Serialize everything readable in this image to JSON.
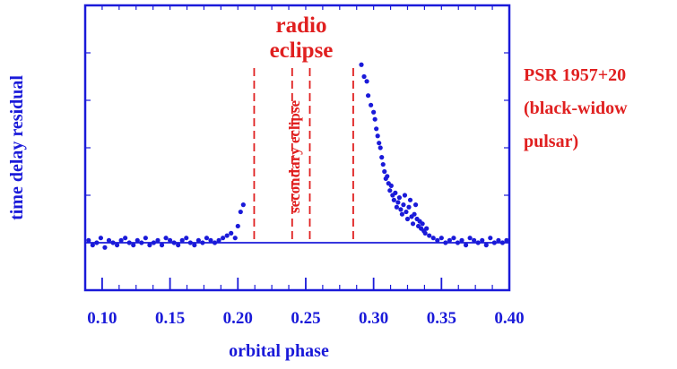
{
  "chart_data": {
    "type": "scatter",
    "title": "",
    "xlabel": "orbital phase",
    "ylabel": "time delay residual",
    "xlim": [
      0.0875,
      0.4
    ],
    "ylim": [
      -0.2,
      1.0
    ],
    "xticks": [
      "0.10",
      "0.15",
      "0.20",
      "0.25",
      "0.30",
      "0.35",
      "0.40"
    ],
    "xtick_values": [
      0.1,
      0.15,
      0.2,
      0.25,
      0.3,
      0.35,
      0.4
    ],
    "baseline_y": 0.0,
    "eclipse_boundaries": [
      0.212,
      0.285
    ],
    "secondary_eclipse_boundaries": [
      0.24,
      0.253
    ],
    "colors": {
      "frame": "#1a1ad9",
      "points": "#1a1ad9",
      "annotation": "#e02020"
    },
    "annotations": {
      "radio_eclipse_line1": "radio",
      "radio_eclipse_line2": "eclipse",
      "secondary_eclipse": "secondary eclipse",
      "pulsar_line1": "PSR 1957+20",
      "pulsar_line2": "(black-widow",
      "pulsar_line3": "pulsar)"
    },
    "series": [
      {
        "x": [
          0.09,
          0.093,
          0.096,
          0.099,
          0.102,
          0.105,
          0.108,
          0.111,
          0.114,
          0.117,
          0.12,
          0.123,
          0.126,
          0.129,
          0.132,
          0.135,
          0.138,
          0.141,
          0.144,
          0.147,
          0.15,
          0.153,
          0.156,
          0.159,
          0.162,
          0.165,
          0.168,
          0.171,
          0.174,
          0.177,
          0.18,
          0.183,
          0.186,
          0.189,
          0.192,
          0.195,
          0.198,
          0.2,
          0.202,
          0.204,
          0.291,
          0.293,
          0.295,
          0.296,
          0.298,
          0.3,
          0.301,
          0.302,
          0.303,
          0.304,
          0.305,
          0.306,
          0.307,
          0.308,
          0.309,
          0.31,
          0.311,
          0.312,
          0.313,
          0.314,
          0.315,
          0.316,
          0.317,
          0.318,
          0.319,
          0.32,
          0.321,
          0.322,
          0.323,
          0.324,
          0.325,
          0.326,
          0.327,
          0.328,
          0.329,
          0.33,
          0.331,
          0.332,
          0.333,
          0.334,
          0.335,
          0.336,
          0.337,
          0.338,
          0.339,
          0.341,
          0.344,
          0.347,
          0.35,
          0.353,
          0.356,
          0.359,
          0.362,
          0.365,
          0.368,
          0.371,
          0.374,
          0.377,
          0.38,
          0.383,
          0.386,
          0.389,
          0.392,
          0.395,
          0.398
        ],
        "y": [
          0.01,
          -0.01,
          0.0,
          0.02,
          -0.02,
          0.01,
          0.0,
          -0.01,
          0.01,
          0.02,
          0.0,
          -0.01,
          0.01,
          0.0,
          0.02,
          -0.01,
          0.0,
          0.01,
          -0.01,
          0.02,
          0.01,
          0.0,
          -0.01,
          0.01,
          0.02,
          0.0,
          -0.01,
          0.01,
          0.0,
          0.02,
          0.01,
          0.0,
          0.01,
          0.02,
          0.03,
          0.04,
          0.02,
          0.07,
          0.13,
          0.16,
          0.75,
          0.7,
          0.68,
          0.62,
          0.58,
          0.55,
          0.52,
          0.48,
          0.45,
          0.42,
          0.4,
          0.36,
          0.33,
          0.3,
          0.27,
          0.28,
          0.25,
          0.22,
          0.24,
          0.2,
          0.18,
          0.21,
          0.15,
          0.17,
          0.19,
          0.14,
          0.12,
          0.16,
          0.2,
          0.13,
          0.1,
          0.15,
          0.18,
          0.11,
          0.08,
          0.12,
          0.16,
          0.1,
          0.07,
          0.09,
          0.06,
          0.08,
          0.05,
          0.04,
          0.06,
          0.03,
          0.02,
          0.01,
          0.02,
          0.0,
          0.01,
          0.02,
          0.0,
          0.01,
          -0.01,
          0.02,
          0.01,
          0.0,
          0.01,
          -0.01,
          0.02,
          0.0,
          0.01,
          0.0,
          0.01
        ]
      }
    ]
  }
}
